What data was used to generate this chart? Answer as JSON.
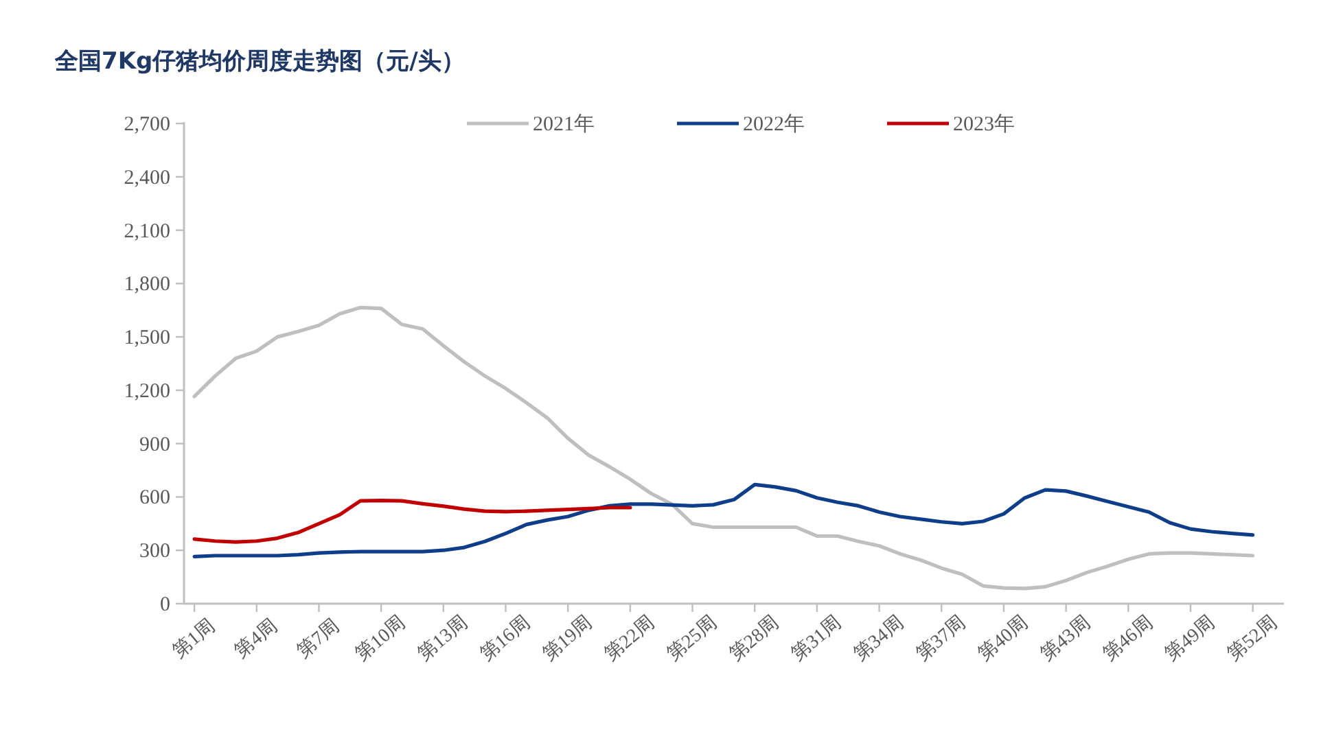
{
  "chart_data": {
    "type": "line",
    "title": "全国7Kg仔猪均价周度走势图（元/头）",
    "categories": [
      "第1周",
      null,
      null,
      "第4周",
      null,
      null,
      "第7周",
      null,
      null,
      "第10周",
      null,
      null,
      "第13周",
      null,
      null,
      "第16周",
      null,
      null,
      "第19周",
      null,
      null,
      "第22周",
      null,
      null,
      "第25周",
      null,
      null,
      "第28周",
      null,
      null,
      "第31周",
      null,
      null,
      "第34周",
      null,
      null,
      "第37周",
      null,
      null,
      "第40周",
      null,
      null,
      "第43周",
      null,
      null,
      "第46周",
      null,
      null,
      "第49周",
      null,
      null,
      "第52周",
      null
    ],
    "series": [
      {
        "name": "2021年",
        "color": "#bfbfbf",
        "values": [
          1165,
          1280,
          1380,
          1420,
          1500,
          1530,
          1565,
          1630,
          1665,
          1660,
          1570,
          1545,
          1450,
          1360,
          1280,
          1210,
          1130,
          1045,
          930,
          835,
          770,
          700,
          620,
          560,
          450,
          430,
          430,
          430,
          430,
          430,
          380,
          380,
          350,
          325,
          280,
          245,
          200,
          165,
          100,
          88,
          85,
          95,
          130,
          175,
          210,
          250,
          280,
          285,
          285,
          280,
          275,
          270,
          null
        ]
      },
      {
        "name": "2022年",
        "color": "#0e3d8a",
        "values": [
          265,
          270,
          270,
          270,
          270,
          275,
          285,
          290,
          293,
          293,
          293,
          293,
          300,
          316,
          350,
          395,
          445,
          470,
          490,
          525,
          550,
          560,
          560,
          555,
          550,
          556,
          585,
          670,
          656,
          635,
          595,
          570,
          550,
          515,
          490,
          475,
          460,
          450,
          463,
          505,
          594,
          640,
          633,
          605,
          575,
          545,
          515,
          455,
          420,
          405,
          395,
          386,
          null
        ]
      },
      {
        "name": "2023年",
        "color": "#c00000",
        "values": [
          363,
          352,
          347,
          352,
          368,
          400,
          450,
          500,
          578,
          580,
          578,
          562,
          548,
          532,
          520,
          517,
          520,
          525,
          530,
          535,
          540,
          540,
          null,
          null,
          null,
          null,
          null,
          null,
          null,
          null,
          null,
          null,
          null,
          null,
          null,
          null,
          null,
          null,
          null,
          null,
          null,
          null,
          null,
          null,
          null,
          null,
          null,
          null,
          null,
          null,
          null,
          null,
          null
        ]
      }
    ],
    "ylim": [
      0,
      2700
    ],
    "yticks": [
      0,
      300,
      600,
      900,
      {
        "value": 1200,
        "label": "1,200"
      },
      {
        "value": 1500,
        "label": "1,500"
      },
      {
        "value": 1800,
        "label": "1,800"
      },
      {
        "value": 2100,
        "label": "2,100"
      },
      {
        "value": 2400,
        "label": "2,400"
      },
      {
        "value": 2700,
        "label": "2,700"
      }
    ],
    "legend": "top"
  }
}
